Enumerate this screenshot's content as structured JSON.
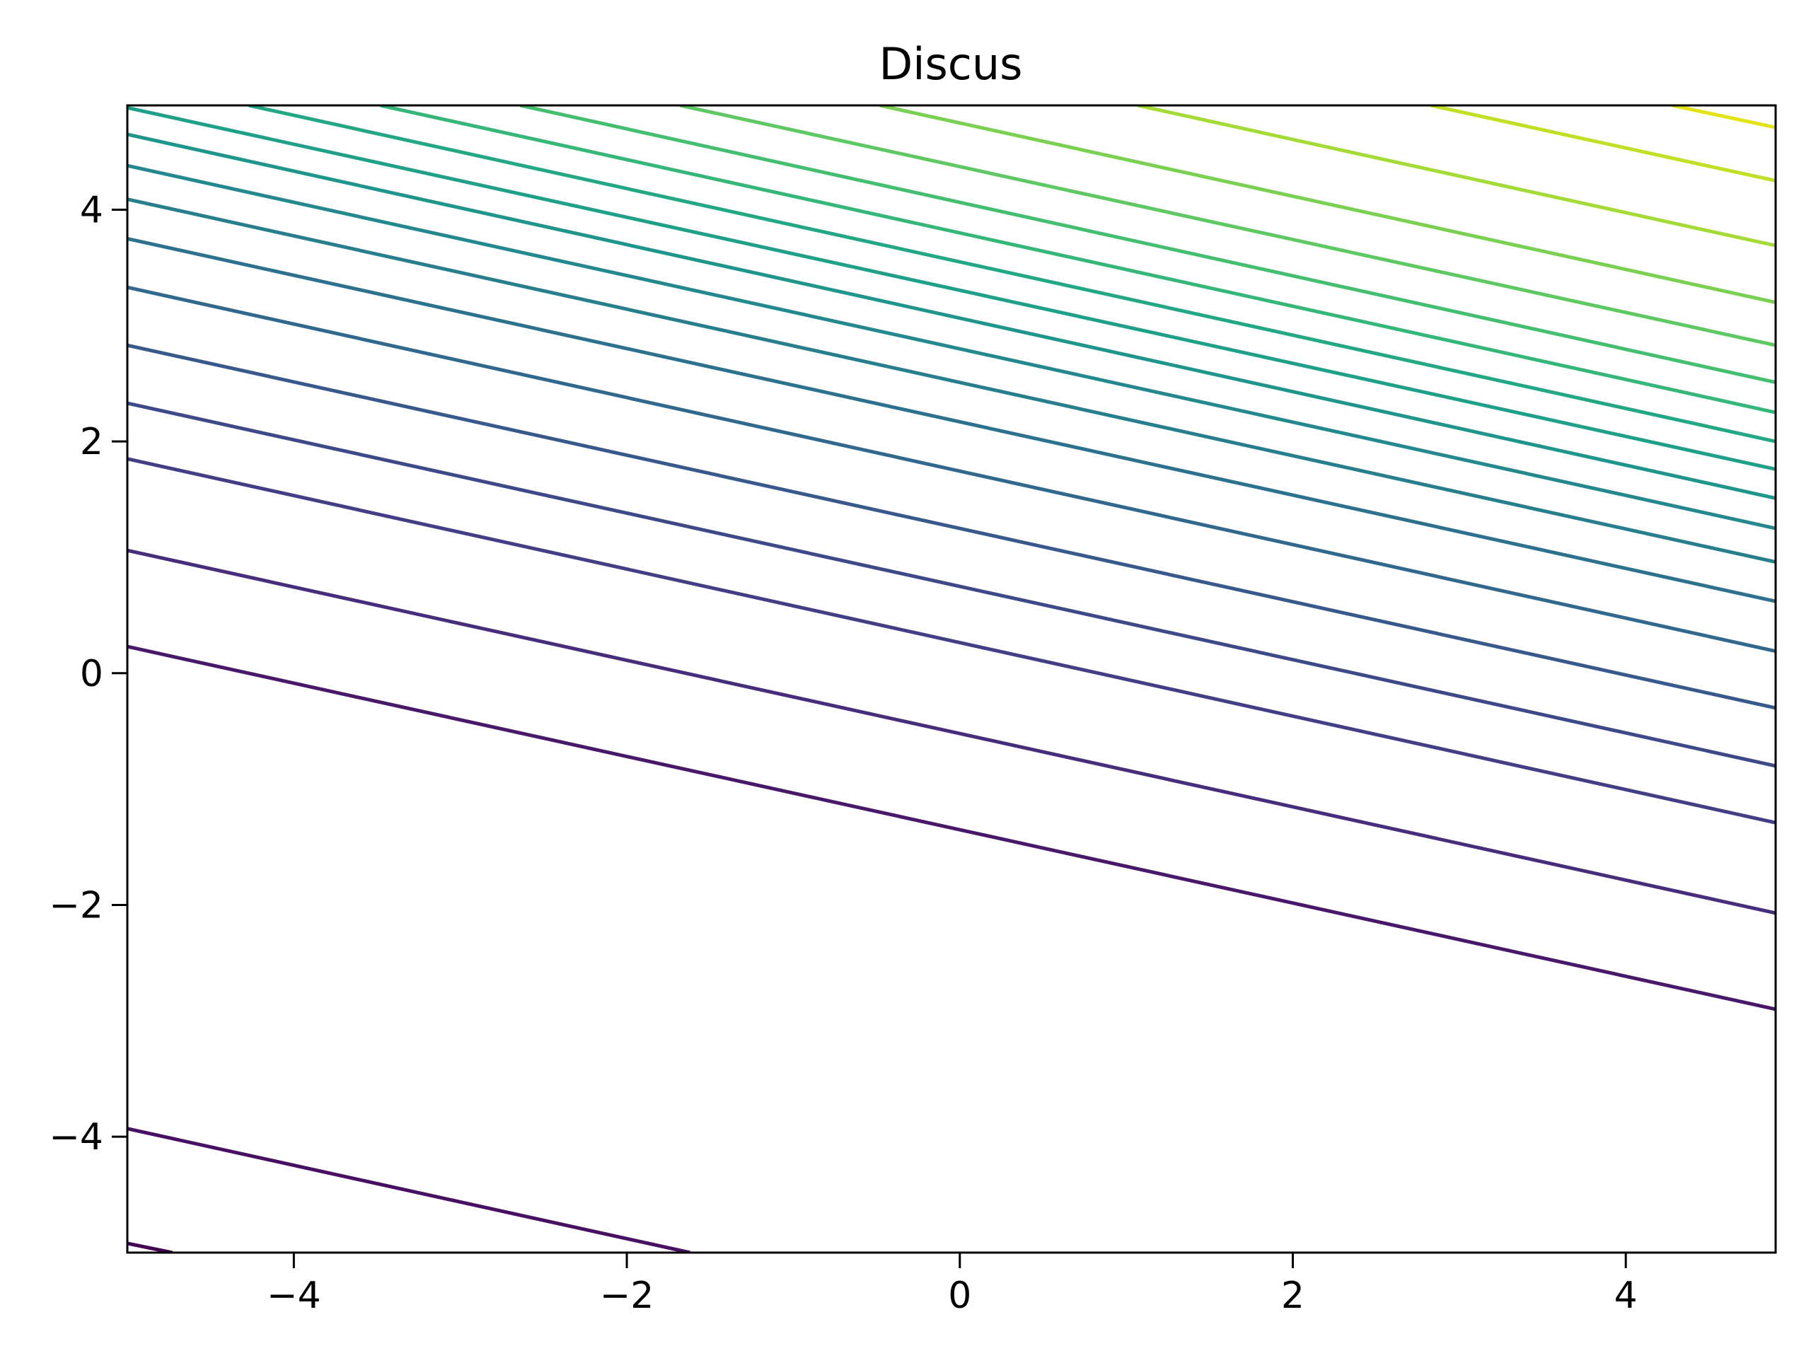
{
  "chart_data": {
    "type": "line",
    "subtype": "contour",
    "title": "Discus",
    "xlabel": "",
    "ylabel": "",
    "xlim": [
      -5,
      4.9
    ],
    "ylim": [
      -5,
      4.9
    ],
    "grid": false,
    "legend": "none",
    "colormap": "viridis",
    "x_ticks": [
      -4,
      -2,
      0,
      2,
      4
    ],
    "y_ticks": [
      -4,
      -2,
      0,
      2,
      4
    ],
    "x_tick_labels": [
      "−4",
      "−2",
      "0",
      "2",
      "4"
    ],
    "y_tick_labels": [
      "−4",
      "−2",
      "0",
      "2",
      "4"
    ],
    "contours": [
      {
        "color": "#440154",
        "x": [
          -5,
          -4.73
        ],
        "y": [
          -4.92,
          -5
        ]
      },
      {
        "color": "#471063",
        "x": [
          -5,
          -1.62
        ],
        "y": [
          -3.93,
          -5
        ]
      },
      {
        "color": "#48186a",
        "x": [
          -5,
          4.9
        ],
        "y": [
          0.23,
          -2.9
        ]
      },
      {
        "color": "#472d7b",
        "x": [
          -5,
          4.9
        ],
        "y": [
          1.06,
          -2.07
        ]
      },
      {
        "color": "#433e85",
        "x": [
          -5,
          4.9
        ],
        "y": [
          1.85,
          -1.29
        ]
      },
      {
        "color": "#3e4989",
        "x": [
          -5,
          4.9
        ],
        "y": [
          2.33,
          -0.8
        ]
      },
      {
        "color": "#38598c",
        "x": [
          -5,
          4.9
        ],
        "y": [
          2.83,
          -0.3
        ]
      },
      {
        "color": "#31688e",
        "x": [
          -5,
          4.9
        ],
        "y": [
          3.33,
          0.19
        ]
      },
      {
        "color": "#2c728e",
        "x": [
          -5,
          4.9
        ],
        "y": [
          3.75,
          0.62
        ]
      },
      {
        "color": "#277f8e",
        "x": [
          -5,
          4.9
        ],
        "y": [
          4.09,
          0.96
        ]
      },
      {
        "color": "#23898e",
        "x": [
          -5,
          4.9
        ],
        "y": [
          4.38,
          1.25
        ]
      },
      {
        "color": "#1f968b",
        "x": [
          -5,
          4.9
        ],
        "y": [
          4.65,
          1.51
        ]
      },
      {
        "color": "#1fa088",
        "x": [
          -5,
          4.9
        ],
        "y": [
          4.88,
          1.76
        ]
      },
      {
        "color": "#22a884",
        "x": [
          -4.27,
          4.9
        ],
        "y": [
          4.9,
          2.0
        ]
      },
      {
        "color": "#35b779",
        "x": [
          -3.48,
          4.9
        ],
        "y": [
          4.9,
          2.25
        ]
      },
      {
        "color": "#44bf70",
        "x": [
          -2.64,
          4.9
        ],
        "y": [
          4.9,
          2.51
        ]
      },
      {
        "color": "#5ec962",
        "x": [
          -1.68,
          4.9
        ],
        "y": [
          4.9,
          2.83
        ]
      },
      {
        "color": "#7ad151",
        "x": [
          -0.48,
          4.9
        ],
        "y": [
          4.9,
          3.2
        ]
      },
      {
        "color": "#a5db36",
        "x": [
          1.07,
          4.9
        ],
        "y": [
          4.9,
          3.69
        ]
      },
      {
        "color": "#c2df23",
        "x": [
          2.83,
          4.9
        ],
        "y": [
          4.9,
          4.25
        ]
      },
      {
        "color": "#e2e418",
        "x": [
          4.28,
          4.9
        ],
        "y": [
          4.9,
          4.71
        ]
      }
    ]
  }
}
